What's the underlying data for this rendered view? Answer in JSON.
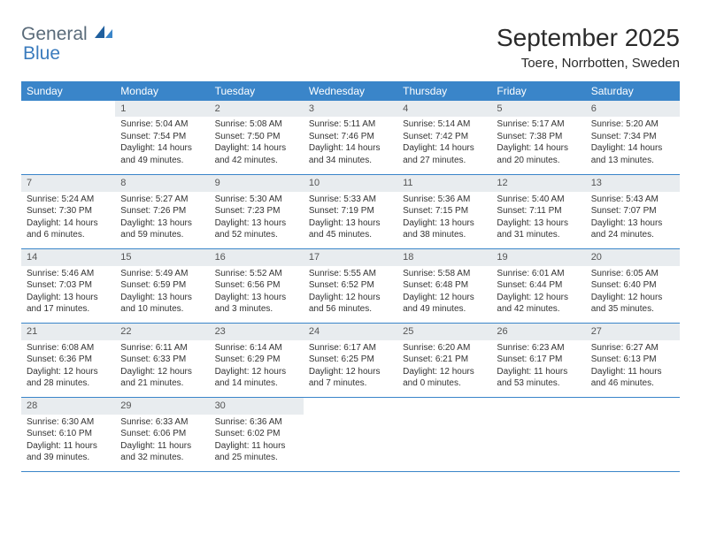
{
  "logo": {
    "text1": "General",
    "text2": "Blue"
  },
  "title": "September 2025",
  "location": "Toere, Norrbotten, Sweden",
  "colors": {
    "header_bg": "#3a85c9",
    "header_fg": "#ffffff",
    "daynum_bg": "#e8ecef",
    "rule": "#3a85c9",
    "logo_gray": "#5a6b7a",
    "logo_blue": "#3a7bbd"
  },
  "weekdays": [
    "Sunday",
    "Monday",
    "Tuesday",
    "Wednesday",
    "Thursday",
    "Friday",
    "Saturday"
  ],
  "grid": {
    "first_weekday_index": 1,
    "num_days": 30
  },
  "days": {
    "1": {
      "sunrise": "5:04 AM",
      "sunset": "7:54 PM",
      "daylight": "14 hours and 49 minutes."
    },
    "2": {
      "sunrise": "5:08 AM",
      "sunset": "7:50 PM",
      "daylight": "14 hours and 42 minutes."
    },
    "3": {
      "sunrise": "5:11 AM",
      "sunset": "7:46 PM",
      "daylight": "14 hours and 34 minutes."
    },
    "4": {
      "sunrise": "5:14 AM",
      "sunset": "7:42 PM",
      "daylight": "14 hours and 27 minutes."
    },
    "5": {
      "sunrise": "5:17 AM",
      "sunset": "7:38 PM",
      "daylight": "14 hours and 20 minutes."
    },
    "6": {
      "sunrise": "5:20 AM",
      "sunset": "7:34 PM",
      "daylight": "14 hours and 13 minutes."
    },
    "7": {
      "sunrise": "5:24 AM",
      "sunset": "7:30 PM",
      "daylight": "14 hours and 6 minutes."
    },
    "8": {
      "sunrise": "5:27 AM",
      "sunset": "7:26 PM",
      "daylight": "13 hours and 59 minutes."
    },
    "9": {
      "sunrise": "5:30 AM",
      "sunset": "7:23 PM",
      "daylight": "13 hours and 52 minutes."
    },
    "10": {
      "sunrise": "5:33 AM",
      "sunset": "7:19 PM",
      "daylight": "13 hours and 45 minutes."
    },
    "11": {
      "sunrise": "5:36 AM",
      "sunset": "7:15 PM",
      "daylight": "13 hours and 38 minutes."
    },
    "12": {
      "sunrise": "5:40 AM",
      "sunset": "7:11 PM",
      "daylight": "13 hours and 31 minutes."
    },
    "13": {
      "sunrise": "5:43 AM",
      "sunset": "7:07 PM",
      "daylight": "13 hours and 24 minutes."
    },
    "14": {
      "sunrise": "5:46 AM",
      "sunset": "7:03 PM",
      "daylight": "13 hours and 17 minutes."
    },
    "15": {
      "sunrise": "5:49 AM",
      "sunset": "6:59 PM",
      "daylight": "13 hours and 10 minutes."
    },
    "16": {
      "sunrise": "5:52 AM",
      "sunset": "6:56 PM",
      "daylight": "13 hours and 3 minutes."
    },
    "17": {
      "sunrise": "5:55 AM",
      "sunset": "6:52 PM",
      "daylight": "12 hours and 56 minutes."
    },
    "18": {
      "sunrise": "5:58 AM",
      "sunset": "6:48 PM",
      "daylight": "12 hours and 49 minutes."
    },
    "19": {
      "sunrise": "6:01 AM",
      "sunset": "6:44 PM",
      "daylight": "12 hours and 42 minutes."
    },
    "20": {
      "sunrise": "6:05 AM",
      "sunset": "6:40 PM",
      "daylight": "12 hours and 35 minutes."
    },
    "21": {
      "sunrise": "6:08 AM",
      "sunset": "6:36 PM",
      "daylight": "12 hours and 28 minutes."
    },
    "22": {
      "sunrise": "6:11 AM",
      "sunset": "6:33 PM",
      "daylight": "12 hours and 21 minutes."
    },
    "23": {
      "sunrise": "6:14 AM",
      "sunset": "6:29 PM",
      "daylight": "12 hours and 14 minutes."
    },
    "24": {
      "sunrise": "6:17 AM",
      "sunset": "6:25 PM",
      "daylight": "12 hours and 7 minutes."
    },
    "25": {
      "sunrise": "6:20 AM",
      "sunset": "6:21 PM",
      "daylight": "12 hours and 0 minutes."
    },
    "26": {
      "sunrise": "6:23 AM",
      "sunset": "6:17 PM",
      "daylight": "11 hours and 53 minutes."
    },
    "27": {
      "sunrise": "6:27 AM",
      "sunset": "6:13 PM",
      "daylight": "11 hours and 46 minutes."
    },
    "28": {
      "sunrise": "6:30 AM",
      "sunset": "6:10 PM",
      "daylight": "11 hours and 39 minutes."
    },
    "29": {
      "sunrise": "6:33 AM",
      "sunset": "6:06 PM",
      "daylight": "11 hours and 32 minutes."
    },
    "30": {
      "sunrise": "6:36 AM",
      "sunset": "6:02 PM",
      "daylight": "11 hours and 25 minutes."
    }
  },
  "labels": {
    "sunrise": "Sunrise:",
    "sunset": "Sunset:",
    "daylight": "Daylight:"
  }
}
